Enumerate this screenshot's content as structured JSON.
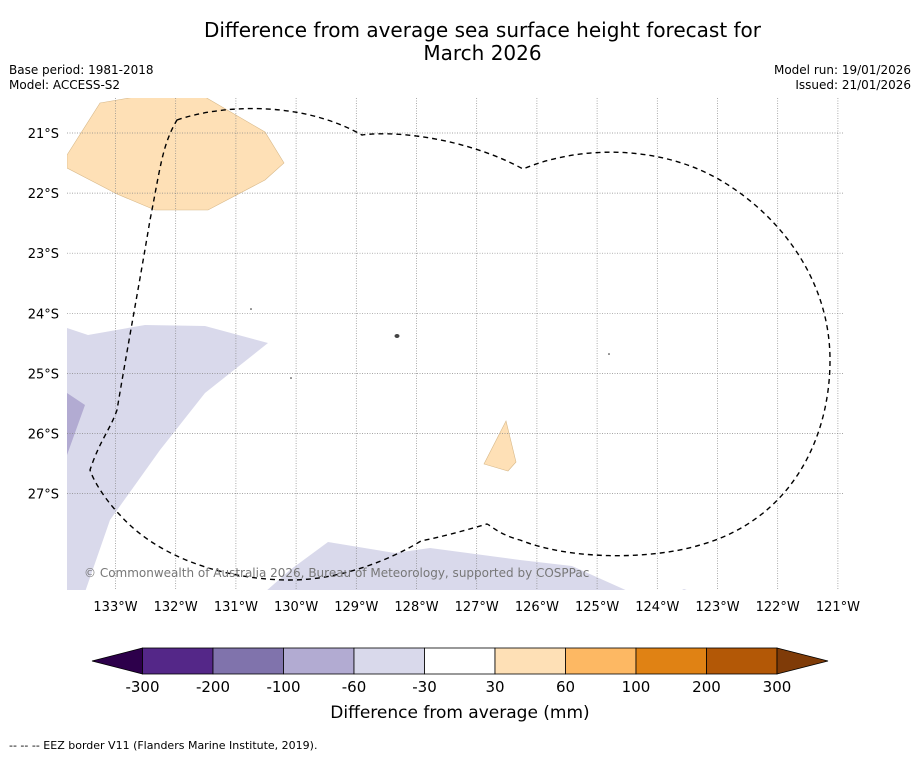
{
  "title_line1": "Difference from average sea surface height forecast for",
  "title_line2": "March 2026",
  "meta": {
    "base_period": "Base period: 1981-2018",
    "model": "Model: ACCESS-S2",
    "model_run": "Model run: 19/01/2026",
    "issued": "Issued: 21/01/2026"
  },
  "map": {
    "lat_labels": [
      "21°S",
      "22°S",
      "23°S",
      "24°S",
      "25°S",
      "26°S",
      "27°S"
    ],
    "lon_labels": [
      "133°W",
      "132°W",
      "131°W",
      "130°W",
      "129°W",
      "128°W",
      "127°W",
      "126°W",
      "125°W",
      "124°W",
      "123°W",
      "122°W",
      "121°W"
    ],
    "copyright": "© Commonwealth of Australia 2026, Bureau of Meteorology, supported by COSPPac",
    "region_colors": {
      "minus_60_to_minus_30": "#d9d9eb",
      "minus_100_to_minus_60": "#b2abd2",
      "plus_30_to_60": "#fee0b6",
      "eez_border": "#000000"
    }
  },
  "colorbar": {
    "tick_labels": [
      "-300",
      "-200",
      "-100",
      "-60",
      "-30",
      "30",
      "60",
      "100",
      "200",
      "300"
    ],
    "colors": [
      "#2d004b",
      "#542788",
      "#8073ac",
      "#b2abd2",
      "#d9d9eb",
      "#ffffff",
      "#fee0b6",
      "#fdb863",
      "#e08214",
      "#b35806",
      "#7f3b08"
    ],
    "label": "Difference from average (mm)"
  },
  "footnote": "--  --  -- EEZ border V11 (Flanders Marine Institute, 2019)."
}
